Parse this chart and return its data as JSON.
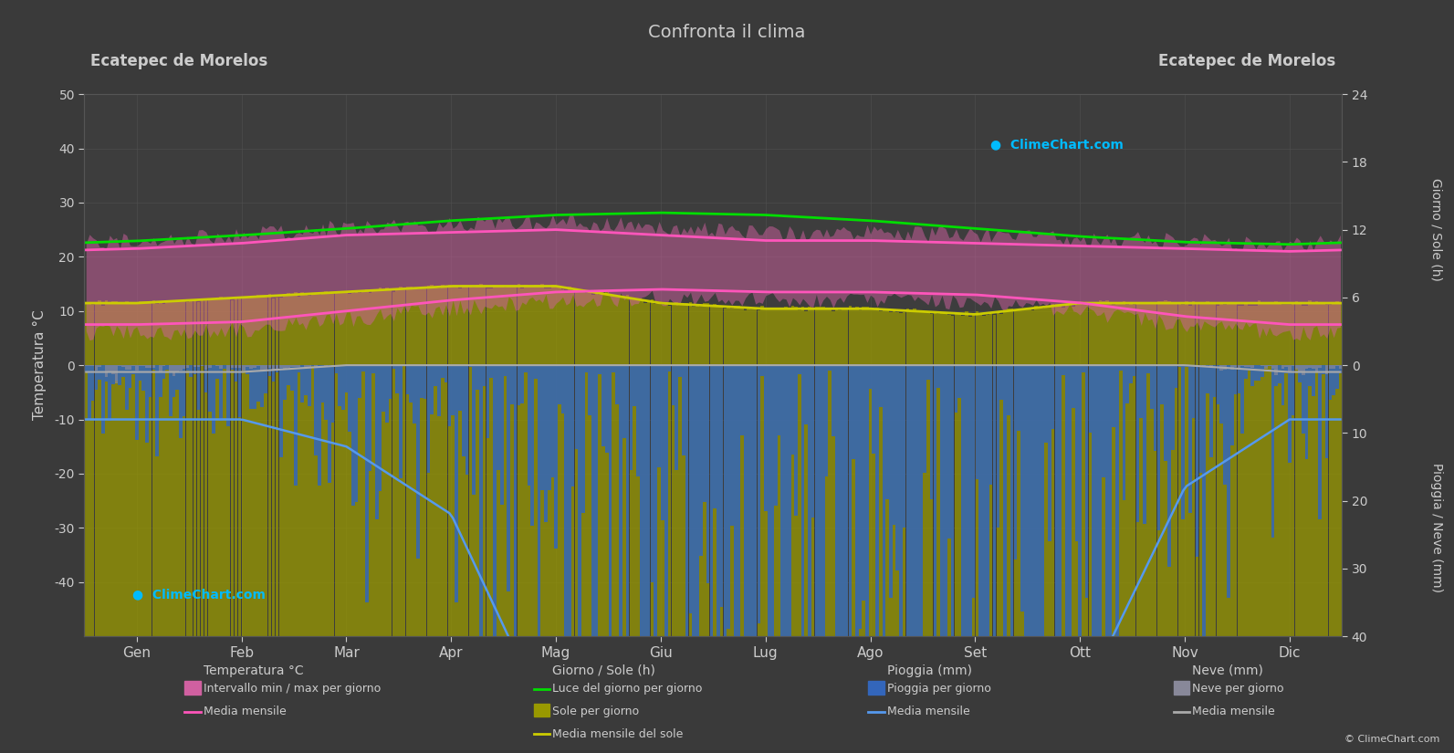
{
  "title": "Confronta il clima",
  "location_left": "Ecatepec de Morelos",
  "location_right": "Ecatepec de Morelos",
  "ylabel_left": "Temperatura °C",
  "ylabel_right_top": "Giorno / Sole (h)",
  "ylabel_right_bottom": "Pioggia / Neve (mm)",
  "months": [
    "Gen",
    "Feb",
    "Mar",
    "Apr",
    "Mag",
    "Giu",
    "Lug",
    "Ago",
    "Set",
    "Ott",
    "Nov",
    "Dic"
  ],
  "background_color": "#3a3a3a",
  "plot_bg_color": "#3d3d3d",
  "grid_color": "#555555",
  "text_color": "#cccccc",
  "temp_max_mean": [
    21.5,
    22.5,
    24.0,
    24.5,
    25.0,
    24.0,
    23.0,
    23.0,
    22.5,
    22.0,
    21.5,
    21.0
  ],
  "temp_min_mean": [
    7.5,
    8.0,
    10.0,
    12.0,
    13.5,
    14.0,
    13.5,
    13.5,
    13.0,
    11.5,
    9.0,
    7.5
  ],
  "temp_max_daily_high": [
    32,
    33,
    34,
    33,
    31,
    28,
    27,
    27,
    28,
    29,
    30,
    31
  ],
  "temp_min_daily_low": [
    3,
    4,
    6,
    8,
    9,
    10,
    10,
    10,
    9,
    7,
    4,
    3
  ],
  "daylight_hours": [
    11.0,
    11.5,
    12.1,
    12.8,
    13.3,
    13.5,
    13.3,
    12.8,
    12.1,
    11.4,
    10.9,
    10.7
  ],
  "sunshine_hours_mean": [
    5.5,
    6.0,
    6.5,
    7.0,
    7.0,
    5.5,
    5.0,
    5.0,
    4.5,
    5.5,
    5.5,
    5.5
  ],
  "rainfall_mm_mean": [
    8,
    8,
    12,
    22,
    55,
    110,
    115,
    120,
    100,
    50,
    18,
    8
  ],
  "snow_mm_mean": [
    1,
    1,
    0,
    0,
    0,
    0,
    0,
    0,
    0,
    0,
    0,
    1
  ],
  "temp_fill_color": "#d060a0",
  "daylight_color": "#00dd00",
  "sunshine_fill_color": "#a0a010",
  "sunshine_line_color": "#cccc00",
  "rainfall_bar_color": "#3366bb",
  "rainfall_line_color": "#5599ee",
  "snow_bar_color": "#888899",
  "snow_line_color": "#aaaaaa",
  "pink_line_color": "#ff55bb"
}
